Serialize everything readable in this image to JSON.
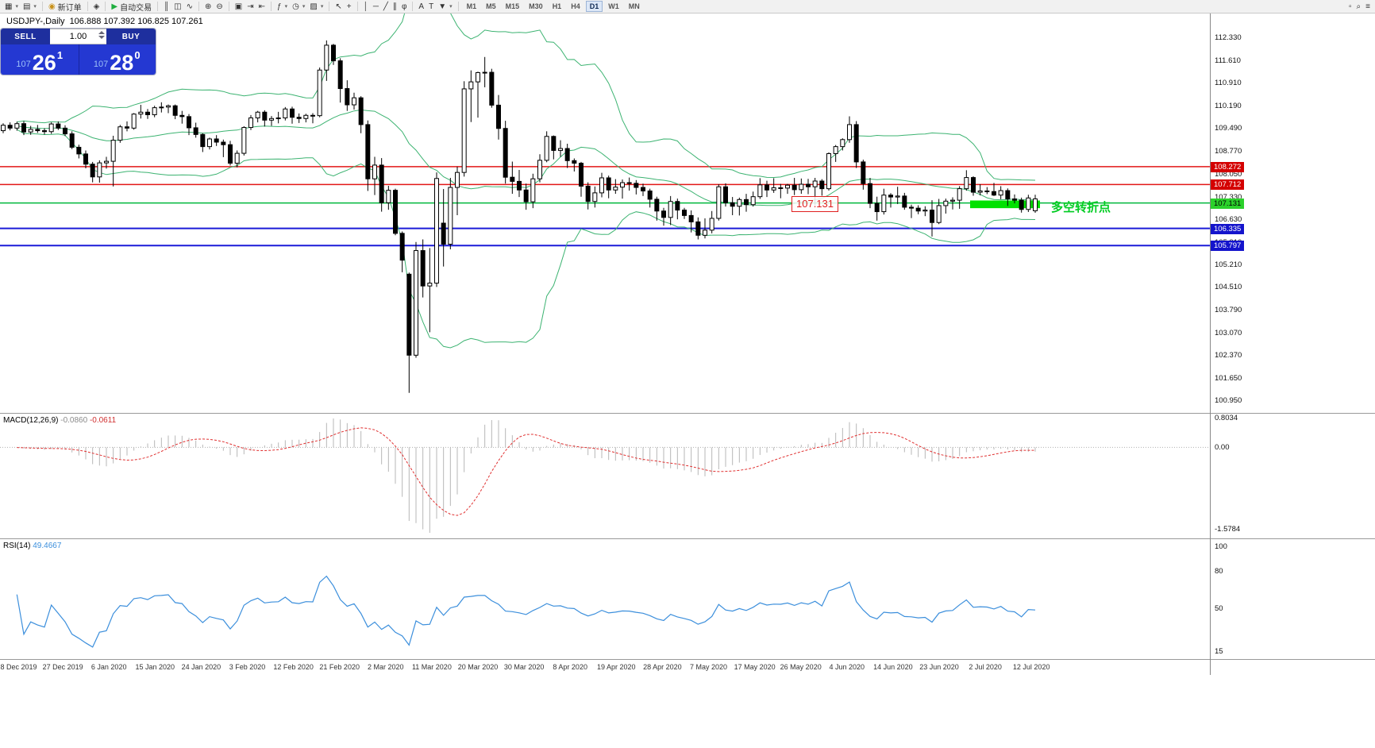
{
  "toolbar": {
    "groups": [
      {
        "items": [
          {
            "name": "new-chart-button",
            "glyph": "▦",
            "dropdown": true
          },
          {
            "name": "profiles-button",
            "glyph": "▤",
            "dropdown": true
          }
        ]
      },
      {
        "items": [
          {
            "name": "new-order-button",
            "glyph": "◉",
            "glyph_color": "#c89018",
            "label": "新订单"
          }
        ]
      },
      {
        "items": [
          {
            "name": "metaeditor-button",
            "glyph": "◈"
          }
        ]
      },
      {
        "items": [
          {
            "name": "autotrade-button",
            "glyph": "▶",
            "glyph_color": "#1fae3f",
            "label": "自动交易"
          }
        ]
      },
      {
        "items": [
          {
            "name": "chart-bars-button",
            "glyph": "║"
          },
          {
            "name": "chart-candles-button",
            "glyph": "◫"
          },
          {
            "name": "chart-line-button",
            "glyph": "∿"
          }
        ]
      },
      {
        "items": [
          {
            "name": "zoom-in-button",
            "glyph": "⊕"
          },
          {
            "name": "zoom-out-button",
            "glyph": "⊖"
          }
        ]
      },
      {
        "items": [
          {
            "name": "tile-windows-button",
            "glyph": "▣"
          },
          {
            "name": "auto-scroll-button",
            "glyph": "⇥"
          },
          {
            "name": "chart-shift-button",
            "glyph": "⇤"
          }
        ]
      },
      {
        "items": [
          {
            "name": "indicators-button",
            "glyph": "ƒ",
            "dropdown": true
          },
          {
            "name": "periods-button",
            "glyph": "◷",
            "dropdown": true
          },
          {
            "name": "templates-button",
            "glyph": "▨",
            "dropdown": true
          }
        ]
      },
      {
        "items": [
          {
            "name": "cursor-button",
            "glyph": "↖"
          },
          {
            "name": "crosshair-button",
            "glyph": "+"
          }
        ]
      },
      {
        "items": [
          {
            "name": "vertical-line-button",
            "glyph": "│"
          },
          {
            "name": "horizontal-line-button",
            "glyph": "─"
          },
          {
            "name": "trendline-button",
            "glyph": "╱"
          },
          {
            "name": "channel-button",
            "glyph": "∥"
          },
          {
            "name": "fibonacci-button",
            "glyph": "φ"
          }
        ]
      },
      {
        "items": [
          {
            "name": "text-button",
            "glyph": "A"
          },
          {
            "name": "text-label-button",
            "glyph": "T"
          },
          {
            "name": "arrows-button",
            "glyph": "▼",
            "dropdown": true
          }
        ]
      }
    ],
    "timeframes": [
      "M1",
      "M5",
      "M15",
      "M30",
      "H1",
      "H4",
      "D1",
      "W1",
      "MN"
    ],
    "active_timeframe": "D1",
    "right_icons": [
      {
        "name": "docking-button",
        "glyph": "▫"
      },
      {
        "name": "search-button",
        "glyph": "⌕"
      },
      {
        "name": "menu-button",
        "glyph": "≡"
      }
    ]
  },
  "chart": {
    "symbol_period": "USDJPY-,Daily",
    "ohlc": "106.888 107.392 106.825 107.261"
  },
  "trade_widget": {
    "sell_label": "SELL",
    "buy_label": "BUY",
    "volume": "1.00",
    "sell_price_prefix": "107",
    "sell_price_big": "26",
    "sell_price_sup": "1",
    "buy_price_prefix": "107",
    "buy_price_big": "28",
    "buy_price_sup": "0"
  },
  "indicators": {
    "macd_label": "MACD(12,26,9)",
    "macd_value_main": "-0.0860",
    "macd_value_signal": "-0.0611",
    "rsi_label": "RSI(14)",
    "rsi_value": "49.4667"
  },
  "annotations": {
    "price_label": "107.131",
    "turning_point": "多空转折点"
  },
  "axes": {
    "price_labels": [
      "112.330",
      "111.610",
      "110.910",
      "110.190",
      "109.490",
      "108.770",
      "108.050",
      "107.330",
      "106.630",
      "105.910",
      "105.210",
      "104.510",
      "103.790",
      "103.070",
      "102.370",
      "101.650",
      "100.950"
    ],
    "macd_labels": [
      {
        "text": "0.8034",
        "pos": "top"
      },
      {
        "text": "0.00",
        "pos": "zero"
      },
      {
        "text": "-1.5784",
        "pos": "bottom"
      }
    ],
    "rsi_labels": [
      "100",
      "80",
      "50",
      "15"
    ],
    "date_labels": [
      "18 Dec 2019",
      "27 Dec 2019",
      "6 Jan 2020",
      "15 Jan 2020",
      "24 Jan 2020",
      "3 Feb 2020",
      "12 Feb 2020",
      "21 Feb 2020",
      "2 Mar 2020",
      "11 Mar 2020",
      "20 Mar 2020",
      "30 Mar 2020",
      "8 Apr 2020",
      "19 Apr 2020",
      "28 Apr 2020",
      "7 May 2020",
      "17 May 2020",
      "26 May 2020",
      "4 Jun 2020",
      "14 Jun 2020",
      "23 Jun 2020",
      "2 Jul 2020",
      "12 Jul 2020"
    ]
  },
  "chart_data": {
    "type": "candlestick",
    "symbol": "USDJPY-",
    "period": "Daily",
    "price_axis_range": [
      100.55,
      112.75
    ],
    "bollinger": {
      "period": 20,
      "deviation": 2,
      "color": "#3CB371"
    },
    "macd": {
      "fast": 12,
      "slow": 26,
      "signal": 9,
      "histogram_color": "#b7b7b7",
      "signal_color": "#e03030",
      "current_main": -0.086,
      "current_signal": -0.0611
    },
    "rsi": {
      "period": 14,
      "color": "#3c8fdc",
      "current": 49.4667
    },
    "levels": [
      {
        "label": "108.272",
        "price": 108.272,
        "color": "#e21717",
        "width": 1.5,
        "tag_bg": "#d40000",
        "tag_fg": "#ffffff"
      },
      {
        "label": "107.712",
        "price": 107.712,
        "color": "#e21717",
        "width": 1.5,
        "tag_bg": "#d40000",
        "tag_fg": "#ffffff"
      },
      {
        "label": "107.131",
        "price": 107.131,
        "color": "#00b83c",
        "width": 1.5,
        "tag_bg": "#2bd12b",
        "tag_fg": "#000000"
      },
      {
        "label": "106.335",
        "price": 106.335,
        "color": "#1b1bd8",
        "width": 2,
        "tag_bg": "#1414cc",
        "tag_fg": "#ffffff"
      },
      {
        "label": "105.797",
        "price": 105.797,
        "color": "#1b1bd8",
        "width": 2,
        "tag_bg": "#1414cc",
        "tag_fg": "#ffffff"
      }
    ],
    "highlight_rect": {
      "start_index": 141,
      "end_index": 150,
      "price_top": 107.21,
      "price_bottom": 106.97,
      "color": "#00e100"
    },
    "candles": [
      [
        109.4,
        109.63,
        109.32,
        109.57
      ],
      [
        109.57,
        109.66,
        109.41,
        109.48
      ],
      [
        109.48,
        109.68,
        109.4,
        109.62
      ],
      [
        109.62,
        109.7,
        109.26,
        109.36
      ],
      [
        109.36,
        109.55,
        109.27,
        109.44
      ],
      [
        109.44,
        109.58,
        109.33,
        109.4
      ],
      [
        109.4,
        109.48,
        109.28,
        109.37
      ],
      [
        109.37,
        109.66,
        109.3,
        109.61
      ],
      [
        109.61,
        109.69,
        109.42,
        109.48
      ],
      [
        109.48,
        109.57,
        109.23,
        109.3
      ],
      [
        109.3,
        109.38,
        108.82,
        108.88
      ],
      [
        108.88,
        108.96,
        108.53,
        108.67
      ],
      [
        108.67,
        108.78,
        108.22,
        108.35
      ],
      [
        108.35,
        108.42,
        107.78,
        107.95
      ],
      [
        107.95,
        108.47,
        107.77,
        108.39
      ],
      [
        108.39,
        108.58,
        108.21,
        108.44
      ],
      [
        108.44,
        109.24,
        107.65,
        109.1
      ],
      [
        109.1,
        109.58,
        109.02,
        109.52
      ],
      [
        109.52,
        109.69,
        109.38,
        109.48
      ],
      [
        109.48,
        109.95,
        109.43,
        109.92
      ],
      [
        109.92,
        110.21,
        109.78,
        109.98
      ],
      [
        109.98,
        110.08,
        109.77,
        109.9
      ],
      [
        109.9,
        110.18,
        109.82,
        110.12
      ],
      [
        110.12,
        110.29,
        109.97,
        110.14
      ],
      [
        110.14,
        110.22,
        109.95,
        110.18
      ],
      [
        110.18,
        110.22,
        109.76,
        109.88
      ],
      [
        109.88,
        110.02,
        109.62,
        109.84
      ],
      [
        109.84,
        109.92,
        109.26,
        109.49
      ],
      [
        109.49,
        109.65,
        109.18,
        109.28
      ],
      [
        109.28,
        109.32,
        108.73,
        108.9
      ],
      [
        108.9,
        109.18,
        108.81,
        109.14
      ],
      [
        109.14,
        109.26,
        108.92,
        109.04
      ],
      [
        109.04,
        109.12,
        108.57,
        108.96
      ],
      [
        108.96,
        109.08,
        108.31,
        108.38
      ],
      [
        108.38,
        108.78,
        108.25,
        108.69
      ],
      [
        108.69,
        109.54,
        108.62,
        109.5
      ],
      [
        109.5,
        109.89,
        109.42,
        109.8
      ],
      [
        109.8,
        110.02,
        109.66,
        109.98
      ],
      [
        109.98,
        110.04,
        109.53,
        109.73
      ],
      [
        109.73,
        109.86,
        109.55,
        109.78
      ],
      [
        109.78,
        109.99,
        109.63,
        109.8
      ],
      [
        109.8,
        110.14,
        109.72,
        110.08
      ],
      [
        110.08,
        110.15,
        109.62,
        109.82
      ],
      [
        109.82,
        109.94,
        109.64,
        109.78
      ],
      [
        109.78,
        109.93,
        109.66,
        109.88
      ],
      [
        109.88,
        109.95,
        109.63,
        109.87
      ],
      [
        109.87,
        111.38,
        109.82,
        111.3
      ],
      [
        111.3,
        112.23,
        110.96,
        112.08
      ],
      [
        112.08,
        112.12,
        111.46,
        111.59
      ],
      [
        111.59,
        111.67,
        110.28,
        110.72
      ],
      [
        110.72,
        110.98,
        110.02,
        110.21
      ],
      [
        110.21,
        110.59,
        110.06,
        110.43
      ],
      [
        110.43,
        110.48,
        109.32,
        109.59
      ],
      [
        109.59,
        109.72,
        107.51,
        107.89
      ],
      [
        107.89,
        108.58,
        107.38,
        108.32
      ],
      [
        108.32,
        108.54,
        106.86,
        107.14
      ],
      [
        107.14,
        107.67,
        106.92,
        107.53
      ],
      [
        107.53,
        107.58,
        106.12,
        106.18
      ],
      [
        106.18,
        106.24,
        104.96,
        105.34
      ],
      [
        104.9,
        104.95,
        101.18,
        102.36
      ],
      [
        102.36,
        105.91,
        102.28,
        105.64
      ],
      [
        105.64,
        105.99,
        104.17,
        104.53
      ],
      [
        104.53,
        105.72,
        103.08,
        104.62
      ],
      [
        104.62,
        108.09,
        104.5,
        107.9
      ],
      [
        106.5,
        107.57,
        105.14,
        105.84
      ],
      [
        105.84,
        107.92,
        105.68,
        107.62
      ],
      [
        107.62,
        108.27,
        106.75,
        108.09
      ],
      [
        108.09,
        110.95,
        107.96,
        110.71
      ],
      [
        110.71,
        111.29,
        109.67,
        110.93
      ],
      [
        110.93,
        111.25,
        109.81,
        111.22
      ],
      [
        111.22,
        111.71,
        110.76,
        111.23
      ],
      [
        111.23,
        111.34,
        110.12,
        110.2
      ],
      [
        110.2,
        110.52,
        109.12,
        109.47
      ],
      [
        109.47,
        109.71,
        107.74,
        107.94
      ],
      [
        107.94,
        108.43,
        107.42,
        107.81
      ],
      [
        107.81,
        108.17,
        107.32,
        107.54
      ],
      [
        107.54,
        107.74,
        106.92,
        107.17
      ],
      [
        107.17,
        108.05,
        106.97,
        107.89
      ],
      [
        107.89,
        108.66,
        107.78,
        108.47
      ],
      [
        108.47,
        109.38,
        108.41,
        109.22
      ],
      [
        109.22,
        109.25,
        108.5,
        108.78
      ],
      [
        108.78,
        109.1,
        108.58,
        108.84
      ],
      [
        108.84,
        108.99,
        108.23,
        108.46
      ],
      [
        108.46,
        108.53,
        108.12,
        108.38
      ],
      [
        108.38,
        108.42,
        107.33,
        107.66
      ],
      [
        107.66,
        107.78,
        106.93,
        107.18
      ],
      [
        107.18,
        107.65,
        106.99,
        107.45
      ],
      [
        107.45,
        108.08,
        107.31,
        107.92
      ],
      [
        107.92,
        107.99,
        107.28,
        107.54
      ],
      [
        107.54,
        107.88,
        107.42,
        107.63
      ],
      [
        107.63,
        107.87,
        107.27,
        107.77
      ],
      [
        107.77,
        107.93,
        107.52,
        107.75
      ],
      [
        107.75,
        107.85,
        107.4,
        107.62
      ],
      [
        107.62,
        107.74,
        107.35,
        107.51
      ],
      [
        107.51,
        107.58,
        106.99,
        107.25
      ],
      [
        107.25,
        107.33,
        106.58,
        106.88
      ],
      [
        106.88,
        106.98,
        106.42,
        106.68
      ],
      [
        106.68,
        107.35,
        106.44,
        107.18
      ],
      [
        107.18,
        107.27,
        106.62,
        106.91
      ],
      [
        106.91,
        106.98,
        106.63,
        106.74
      ],
      [
        106.74,
        106.9,
        106.21,
        106.54
      ],
      [
        106.54,
        106.68,
        105.99,
        106.12
      ],
      [
        106.12,
        106.65,
        106.02,
        106.28
      ],
      [
        106.28,
        106.88,
        106.18,
        106.65
      ],
      [
        106.65,
        107.72,
        106.58,
        107.64
      ],
      [
        107.64,
        107.75,
        107.02,
        107.14
      ],
      [
        107.14,
        107.32,
        106.75,
        107.03
      ],
      [
        107.03,
        107.3,
        106.74,
        107.24
      ],
      [
        107.24,
        107.42,
        106.86,
        107.08
      ],
      [
        107.08,
        107.49,
        107.02,
        107.33
      ],
      [
        107.33,
        107.91,
        107.26,
        107.7
      ],
      [
        107.7,
        107.83,
        107.32,
        107.54
      ],
      [
        107.54,
        107.91,
        107.45,
        107.61
      ],
      [
        107.61,
        107.73,
        107.28,
        107.6
      ],
      [
        107.6,
        107.73,
        107.42,
        107.69
      ],
      [
        107.69,
        107.92,
        107.38,
        107.55
      ],
      [
        107.55,
        107.9,
        107.42,
        107.72
      ],
      [
        107.72,
        107.89,
        107.41,
        107.64
      ],
      [
        107.64,
        107.92,
        107.06,
        107.82
      ],
      [
        107.82,
        107.88,
        107.36,
        107.58
      ],
      [
        107.58,
        108.72,
        107.52,
        108.68
      ],
      [
        108.68,
        108.95,
        108.42,
        108.9
      ],
      [
        108.9,
        109.16,
        108.78,
        109.12
      ],
      [
        109.12,
        109.85,
        109.02,
        109.59
      ],
      [
        109.59,
        109.7,
        108.23,
        108.42
      ],
      [
        108.42,
        108.49,
        107.55,
        107.74
      ],
      [
        107.74,
        107.92,
        106.97,
        107.12
      ],
      [
        107.12,
        107.33,
        106.58,
        106.86
      ],
      [
        106.86,
        107.58,
        106.77,
        107.38
      ],
      [
        107.38,
        107.44,
        106.99,
        107.32
      ],
      [
        107.32,
        107.64,
        107.1,
        107.35
      ],
      [
        107.35,
        107.45,
        106.92,
        107.0
      ],
      [
        107.0,
        107.08,
        106.66,
        106.97
      ],
      [
        106.97,
        107.06,
        106.78,
        106.88
      ],
      [
        106.88,
        107.03,
        106.72,
        106.91
      ],
      [
        106.91,
        107.22,
        106.08,
        106.52
      ],
      [
        106.52,
        107.26,
        106.47,
        107.05
      ],
      [
        107.05,
        107.27,
        106.8,
        107.19
      ],
      [
        107.19,
        107.31,
        106.93,
        107.22
      ],
      [
        107.22,
        107.66,
        106.95,
        107.58
      ],
      [
        107.58,
        108.16,
        107.52,
        107.93
      ],
      [
        107.93,
        107.97,
        107.36,
        107.47
      ],
      [
        107.47,
        107.72,
        107.37,
        107.51
      ],
      [
        107.51,
        107.63,
        107.41,
        107.49
      ],
      [
        107.49,
        107.76,
        107.35,
        107.38
      ],
      [
        107.38,
        107.66,
        107.25,
        107.52
      ],
      [
        107.52,
        107.59,
        107.04,
        107.26
      ],
      [
        107.26,
        107.4,
        107.12,
        107.22
      ],
      [
        107.22,
        107.3,
        106.83,
        106.93
      ],
      [
        106.93,
        107.39,
        106.85,
        107.29
      ],
      [
        106.888,
        107.392,
        106.825,
        107.261
      ]
    ]
  }
}
